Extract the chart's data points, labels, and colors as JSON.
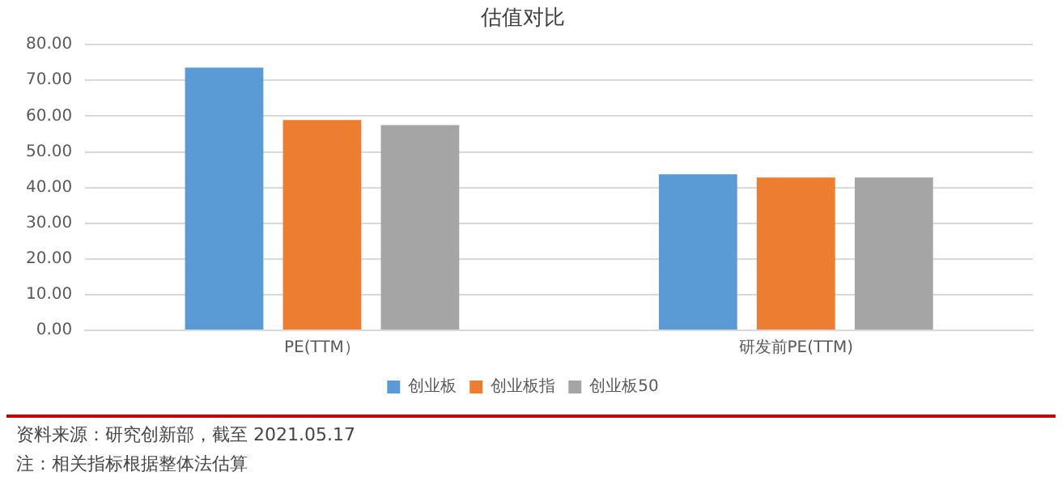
{
  "chart_data": {
    "type": "bar",
    "title": "估值对比",
    "categories": [
      "PE(TTM）",
      "研发前PE(TTM)"
    ],
    "series": [
      {
        "name": "创业板",
        "color": "#5b9bd5",
        "values": [
          73.6,
          43.7
        ]
      },
      {
        "name": "创业板指",
        "color": "#ed7d31",
        "values": [
          58.9,
          42.8
        ]
      },
      {
        "name": "创业板50",
        "color": "#a5a5a5",
        "values": [
          57.5,
          42.8
        ]
      }
    ],
    "ylim": [
      0,
      80
    ],
    "yticks": [
      {
        "value": 0,
        "label": "0.00"
      },
      {
        "value": 10,
        "label": "10.00"
      },
      {
        "value": 20,
        "label": "20.00"
      },
      {
        "value": 30,
        "label": "30.00"
      },
      {
        "value": 40,
        "label": "40.00"
      },
      {
        "value": 50,
        "label": "50.00"
      },
      {
        "value": 60,
        "label": "60.00"
      },
      {
        "value": 70,
        "label": "70.00"
      },
      {
        "value": 80,
        "label": "80.00"
      }
    ],
    "grid": "y",
    "legend": "bottom",
    "annotations": [
      "资料来源：研究创新部，截至 2021.05.17",
      "注：相关指标根据整体法估算"
    ]
  }
}
